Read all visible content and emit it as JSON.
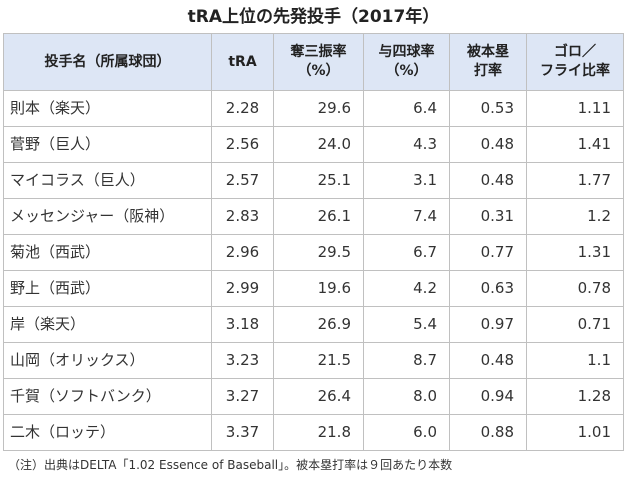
{
  "title": "tRA上位の先発投手（2017年）",
  "table": {
    "headers": [
      [
        "投手名（所属球団）"
      ],
      [
        "tRA"
      ],
      [
        "奪三振率",
        "（%）"
      ],
      [
        "与四球率",
        "（%）"
      ],
      [
        "被本塁",
        "打率"
      ],
      [
        "ゴロ／",
        "フライ比率"
      ]
    ],
    "rows": [
      [
        "則本（楽天）",
        "2.28",
        "29.6",
        "6.4",
        "0.53",
        "1.11"
      ],
      [
        "菅野（巨人）",
        "2.56",
        "24.0",
        "4.3",
        "0.48",
        "1.41"
      ],
      [
        "マイコラス（巨人）",
        "2.57",
        "25.1",
        "3.1",
        "0.48",
        "1.77"
      ],
      [
        "メッセンジャー（阪神）",
        "2.83",
        "26.1",
        "7.4",
        "0.31",
        "1.2"
      ],
      [
        "菊池（西武）",
        "2.96",
        "29.5",
        "6.7",
        "0.77",
        "1.31"
      ],
      [
        "野上（西武）",
        "2.99",
        "19.6",
        "4.2",
        "0.63",
        "0.78"
      ],
      [
        "岸（楽天）",
        "3.18",
        "26.9",
        "5.4",
        "0.97",
        "0.71"
      ],
      [
        "山岡（オリックス）",
        "3.23",
        "21.5",
        "8.7",
        "0.48",
        "1.1"
      ],
      [
        "千賀（ソフトバンク）",
        "3.27",
        "26.4",
        "8.0",
        "0.94",
        "1.28"
      ],
      [
        "二木（ロッテ）",
        "3.37",
        "21.8",
        "6.0",
        "0.88",
        "1.01"
      ]
    ]
  },
  "note": "（注）出典はDELTA「1.02 Essence of Baseball」。被本塁打率は９回あたり本数",
  "colors": {
    "header_bg": "#dde6f5",
    "border": "#c0c0c0"
  }
}
